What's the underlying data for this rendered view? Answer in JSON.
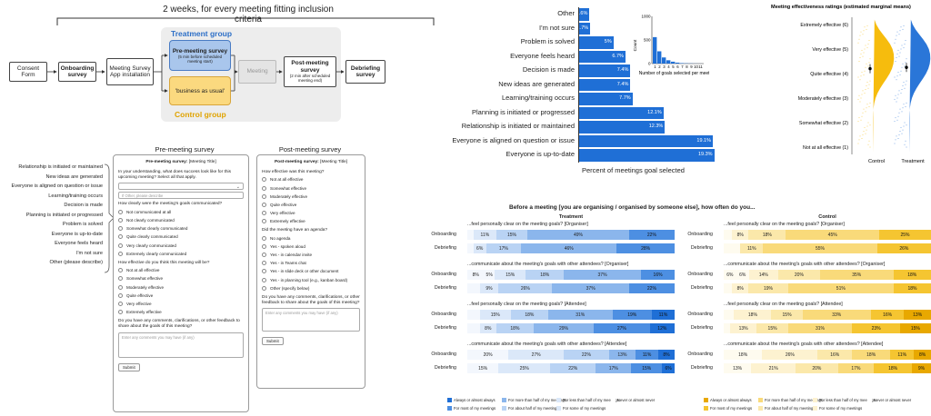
{
  "flow": {
    "span_label": "2 weeks, for every meeting fitting inclusion criteria",
    "consent": "Consent Form",
    "onboarding": "Onboarding survey",
    "install": "Meeting Survey App installation",
    "treatment_label": "Treatment group",
    "pre_meeting": "Pre-meeting survey",
    "pre_meeting_note": "(5 min before scheduled meeting start)",
    "business_as_usual": "'business as usual'",
    "control_label": "Control group",
    "meeting": "Meeting",
    "post_meeting": "Post-meeting survey",
    "post_meeting_note": "(2 min after scheduled meeting end)",
    "debriefing": "Debriefing survey"
  },
  "goal_list": [
    "Relationship is initiated or maintained",
    "New ideas are generated",
    "Everyone is aligned on question or issue",
    "Learning/training occurs",
    "Decision is made",
    "Planning is initiated or progressed",
    "Problem is solved",
    "Everyone is up-to-date",
    "Everyone feels heard",
    "I'm not sure",
    "Other (please describe)"
  ],
  "pre_survey": {
    "heading": "Pre-meeting survey",
    "header": "Pre-meeting survey:",
    "header_title": "[Meeting Title]",
    "q1": "In your understanding, what does success look like for this upcoming meeting? Select all that apply.",
    "other_placeholder": "If Other, please describe",
    "q2": "How clearly were the meeting's goals communicated?",
    "q2_options": [
      "Not communicated at all",
      "Not clearly communicated",
      "Somewhat clearly communicated",
      "Quite clearly communicated",
      "Very clearly communicated",
      "Extremely clearly communicated"
    ],
    "q3": "How effective do you think this meeting will be?",
    "q3_options": [
      "Not at all effective",
      "Somewhat effective",
      "Moderately effective",
      "Quite effective",
      "Very effective",
      "Extremely effective"
    ],
    "q4": "Do you have any comments, clarifications, or other feedback to share about the goals of this meeting?",
    "comment_placeholder": "Enter any comments you may have (if any)",
    "submit": "Submit"
  },
  "post_survey": {
    "heading": "Post-meeting survey",
    "header": "Post-meeting survey:",
    "header_title": "[Meeting Title]",
    "q1": "How effective was this meeting?",
    "q1_options": [
      "Not at all effective",
      "Somewhat effective",
      "Moderately effective",
      "Quite effective",
      "Very effective",
      "Extremely effective"
    ],
    "q2": "Did the meeting have an agenda?",
    "q2_options": [
      "No agenda",
      "Yes - spoken aloud",
      "Yes - in calendar invite",
      "Yes - in Teams chat",
      "Yes - in slide deck or other document",
      "Yes - in planning tool (e.g., kanban board)",
      "Other (specify below)"
    ],
    "q3": "Do you have any comments, clarifications, or other feedback to share about the goals of this meeting?",
    "comment_placeholder": "Enter any comments you may have (if any)",
    "submit": "Submit"
  },
  "chart_data": [
    {
      "type": "bar",
      "orientation": "horizontal",
      "xlabel": "Percent of meetings goal selected",
      "categories": [
        "Other",
        "I'm not sure",
        "Problem is solved",
        "Everyone feels heard",
        "Decision is made",
        "New ideas are generated",
        "Learning/training occurs",
        "Planning is initiated or progressed",
        "Relationship is initiated or maintained",
        "Everyone is aligned on question or issue",
        "Everyone is up-to-date"
      ],
      "values": [
        1.6,
        1.7,
        5,
        6.7,
        7.4,
        7.4,
        7.7,
        12.1,
        12.3,
        19.1,
        19.3
      ],
      "labels": [
        "1.6%",
        "1.7%",
        "5%",
        "6.7%",
        "7.4%",
        "7.4%",
        "7.7%",
        "12.1%",
        "12.3%",
        "19.1%",
        "19.3%"
      ],
      "color": "#1f6fd6"
    },
    {
      "type": "bar",
      "title": "",
      "xlabel": "Number of goals selected per meeting",
      "ylabel": "Count",
      "categories": [
        1,
        2,
        3,
        4,
        5,
        6,
        7,
        8,
        9,
        10,
        11
      ],
      "values": [
        560,
        260,
        130,
        70,
        40,
        20,
        10,
        6,
        4,
        2,
        1
      ],
      "ylim": [
        0,
        1000
      ],
      "yticks": [
        0,
        500,
        1000
      ],
      "color": "#1f6fd6"
    },
    {
      "type": "scatter",
      "title": "Meeting effectiveness ratings (estimated marginal means)",
      "categories": [
        "Control",
        "Treatment"
      ],
      "ylevels": [
        "Not at all effective (1)",
        "Somewhat effective (2)",
        "Moderately effective (3)",
        "Quite effective (4)",
        "Very effective (5)",
        "Extremely effective (6)"
      ],
      "means": [
        4.2,
        4.25
      ],
      "colors": [
        "#f5b800",
        "#1f6fd6"
      ]
    },
    {
      "type": "stacked-bar",
      "title": "Before a meeting [you are organising / organised by someone else], how often do you...",
      "panels": [
        {
          "name": "Treatment",
          "colors": [
            "#1f6fd6",
            "#4d8fe2",
            "#8bb6ec",
            "#b9d3f4",
            "#dbe8f9",
            "#f3f7fd"
          ],
          "questions": [
            {
              "label": "...feel personally clear on the meeting goals? [Organiser]",
              "rows": [
                {
                  "name": "Onboarding",
                  "values": [
                    0,
                    22,
                    49,
                    15,
                    11,
                    3
                  ],
                  "labels": [
                    "",
                    "22%",
                    "49%",
                    "15%",
                    "11%",
                    ""
                  ]
                },
                {
                  "name": "Debriefing",
                  "values": [
                    0,
                    28,
                    46,
                    17,
                    6,
                    3
                  ],
                  "labels": [
                    "",
                    "28%",
                    "46%",
                    "17%",
                    "6%",
                    ""
                  ]
                }
              ]
            },
            {
              "label": "...communicate about the meeting's goals with other attendees? [Organiser]",
              "rows": [
                {
                  "name": "Onboarding",
                  "values": [
                    0,
                    16,
                    37,
                    18,
                    15,
                    5,
                    8
                  ],
                  "labels": [
                    "",
                    "16%",
                    "37%",
                    "18%",
                    "15%",
                    "5%",
                    "8%"
                  ]
                },
                {
                  "name": "Debriefing",
                  "values": [
                    0,
                    22,
                    37,
                    26,
                    9,
                    6
                  ],
                  "labels": [
                    "",
                    "22%",
                    "37%",
                    "26%",
                    "9%",
                    ""
                  ]
                }
              ]
            },
            {
              "label": "...feel personally clear on the meeting goals? [Attendee]",
              "rows": [
                {
                  "name": "Onboarding",
                  "values": [
                    11,
                    19,
                    31,
                    18,
                    15,
                    6
                  ],
                  "labels": [
                    "11%",
                    "19%",
                    "31%",
                    "18%",
                    "15%",
                    ""
                  ]
                },
                {
                  "name": "Debriefing",
                  "values": [
                    12,
                    27,
                    29,
                    18,
                    8,
                    6
                  ],
                  "labels": [
                    "12%",
                    "27%",
                    "29%",
                    "18%",
                    "8%",
                    ""
                  ]
                }
              ]
            },
            {
              "label": "...communicate about the meeting's goals with other attendees? [Attendee]",
              "rows": [
                {
                  "name": "Onboarding",
                  "values": [
                    8,
                    11,
                    13,
                    22,
                    27,
                    20
                  ],
                  "labels": [
                    "8%",
                    "11%",
                    "13%",
                    "22%",
                    "27%",
                    "20%"
                  ]
                },
                {
                  "name": "Debriefing",
                  "values": [
                    6,
                    15,
                    17,
                    22,
                    25,
                    15
                  ],
                  "labels": [
                    "6%",
                    "15%",
                    "17%",
                    "22%",
                    "25%",
                    "15%"
                  ]
                }
              ]
            }
          ]
        },
        {
          "name": "Control",
          "colors": [
            "#e8a800",
            "#f5c531",
            "#f9da7a",
            "#fbe8aa",
            "#fdf2d0",
            "#fefbef"
          ],
          "questions": [
            {
              "label": "...feel personally clear on the meeting goals? [Organiser]",
              "rows": [
                {
                  "name": "Onboarding",
                  "values": [
                    0,
                    25,
                    45,
                    18,
                    8,
                    4
                  ],
                  "labels": [
                    "",
                    "25%",
                    "45%",
                    "18%",
                    "8%",
                    ""
                  ]
                },
                {
                  "name": "Debriefing",
                  "values": [
                    0,
                    26,
                    55,
                    11,
                    0,
                    8
                  ],
                  "labels": [
                    "",
                    "26%",
                    "55%",
                    "11%",
                    "",
                    ""
                  ]
                }
              ]
            },
            {
              "label": "...communicate about the meeting's goals with other attendees? [Organiser]",
              "rows": [
                {
                  "name": "Onboarding",
                  "values": [
                    0,
                    18,
                    35,
                    20,
                    14,
                    6,
                    6
                  ],
                  "labels": [
                    "",
                    "18%",
                    "35%",
                    "20%",
                    "14%",
                    "6%",
                    "6%"
                  ]
                },
                {
                  "name": "Debriefing",
                  "values": [
                    0,
                    18,
                    51,
                    19,
                    8,
                    4
                  ],
                  "labels": [
                    "",
                    "18%",
                    "51%",
                    "19%",
                    "8%",
                    ""
                  ]
                }
              ]
            },
            {
              "label": "...feel personally clear on the meeting goals? [Attendee]",
              "rows": [
                {
                  "name": "Onboarding",
                  "values": [
                    13,
                    16,
                    33,
                    15,
                    18,
                    5
                  ],
                  "labels": [
                    "13%",
                    "16%",
                    "33%",
                    "15%",
                    "18%",
                    ""
                  ]
                },
                {
                  "name": "Debriefing",
                  "values": [
                    15,
                    23,
                    31,
                    15,
                    13,
                    3
                  ],
                  "labels": [
                    "15%",
                    "23%",
                    "31%",
                    "15%",
                    "13%",
                    ""
                  ]
                }
              ]
            },
            {
              "label": "...communicate about the meeting's goals with other attendees? [Attendee]",
              "rows": [
                {
                  "name": "Onboarding",
                  "values": [
                    8,
                    11,
                    18,
                    16,
                    26,
                    18
                  ],
                  "labels": [
                    "8%",
                    "11%",
                    "18%",
                    "16%",
                    "26%",
                    "18%"
                  ]
                },
                {
                  "name": "Debriefing",
                  "values": [
                    9,
                    18,
                    17,
                    20,
                    21,
                    13
                  ],
                  "labels": [
                    "9%",
                    "18%",
                    "17%",
                    "20%",
                    "21%",
                    "13%"
                  ]
                }
              ]
            }
          ]
        }
      ],
      "legend": [
        "Always or almost always",
        "For more than half of my meetings",
        "For less than half of my meetings",
        "Never or almost never",
        "For most of my meetings",
        "For about half of my meetings",
        "For some of my meetings"
      ]
    }
  ]
}
